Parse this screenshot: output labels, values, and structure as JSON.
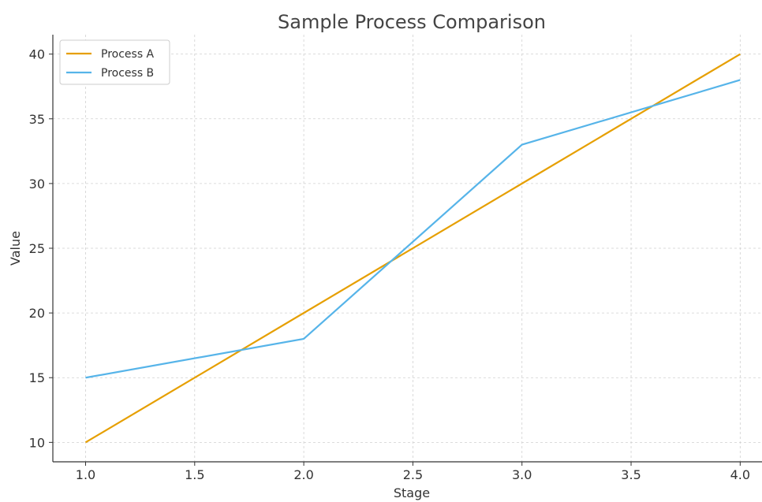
{
  "chart_data": {
    "type": "line",
    "title": "Sample Process Comparison",
    "xlabel": "Stage",
    "ylabel": "Value",
    "x": [
      1.0,
      2.0,
      3.0,
      4.0
    ],
    "xlim": [
      0.85,
      4.1
    ],
    "ylim": [
      8.5,
      41.5
    ],
    "xticks": [
      1.0,
      1.5,
      2.0,
      2.5,
      3.0,
      3.5,
      4.0
    ],
    "xtick_labels": [
      "1.0",
      "1.5",
      "2.0",
      "2.5",
      "3.0",
      "3.5",
      "4.0"
    ],
    "yticks": [
      10,
      15,
      20,
      25,
      30,
      35,
      40
    ],
    "ytick_labels": [
      "10",
      "15",
      "20",
      "25",
      "30",
      "35",
      "40"
    ],
    "grid": true,
    "legend_position": "top-left",
    "series": [
      {
        "name": "Process A",
        "values": [
          10,
          20,
          30,
          40
        ],
        "color": "#E69F00"
      },
      {
        "name": "Process B",
        "values": [
          15,
          18,
          33,
          38
        ],
        "color": "#56B4E9"
      }
    ]
  }
}
